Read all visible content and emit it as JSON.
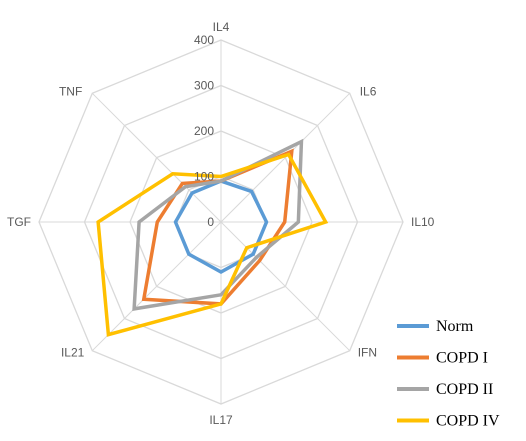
{
  "chart_data": {
    "type": "radar",
    "categories": [
      "IL4",
      "IL6",
      "IL10",
      "IFN",
      "IL17",
      "IL21",
      "TGF",
      "TNF"
    ],
    "ticks": [
      "0",
      "100",
      "200",
      "300",
      "400"
    ],
    "rlim": [
      0,
      400
    ],
    "grid": true,
    "legend_position": "bottom-right",
    "series": [
      {
        "name": "Norm",
        "color": "#5b9bd5",
        "values": [
          90,
          95,
          100,
          100,
          110,
          100,
          100,
          90
        ]
      },
      {
        "name": "COPD I",
        "color": "#ed7d31",
        "values": [
          90,
          220,
          140,
          120,
          180,
          240,
          140,
          120
        ]
      },
      {
        "name": "COPD II",
        "color": "#a5a5a5",
        "values": [
          90,
          250,
          170,
          110,
          160,
          270,
          180,
          110
        ]
      },
      {
        "name": "COPD IV",
        "color": "#ffc000",
        "values": [
          100,
          210,
          230,
          80,
          180,
          350,
          270,
          150
        ]
      }
    ]
  }
}
